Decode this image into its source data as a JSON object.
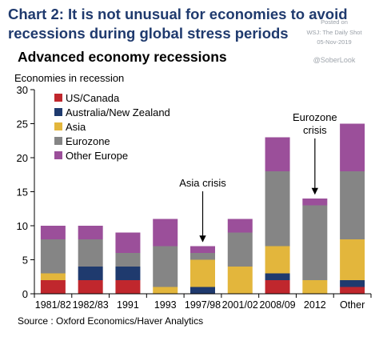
{
  "headline": {
    "line1": "Chart 2: It is not unusual for economies to avoid",
    "line2": "recessions during global stress periods"
  },
  "watermark": {
    "posted": "Posted on",
    "source": "WSJ: The Daily Shot",
    "date": "05-Nov-2019",
    "handle": "@SoberLook"
  },
  "chart_data": {
    "type": "bar",
    "stacked": true,
    "title": "Advanced economy recessions",
    "ylabel": "Economies in recession",
    "ylim": [
      0,
      30
    ],
    "yticks": [
      0,
      5,
      10,
      15,
      20,
      25,
      30
    ],
    "categories": [
      "1981/82",
      "1982/83",
      "1991",
      "1993",
      "1997/98",
      "2001/02",
      "2008/09",
      "2012",
      "Other"
    ],
    "series": [
      {
        "name": "US/Canada",
        "color": "#c0272d",
        "values": [
          2,
          2,
          2,
          0,
          0,
          0,
          2,
          0,
          1
        ]
      },
      {
        "name": "Australia/New Zealand",
        "color": "#1f3a6e",
        "values": [
          0,
          2,
          2,
          0,
          1,
          0,
          1,
          0,
          1
        ]
      },
      {
        "name": "Asia",
        "color": "#e3b63c",
        "values": [
          1,
          0,
          0,
          1,
          4,
          4,
          4,
          2,
          6
        ]
      },
      {
        "name": "Eurozone",
        "color": "#858585",
        "values": [
          5,
          4,
          2,
          6,
          1,
          5,
          11,
          11,
          10
        ]
      },
      {
        "name": "Other Europe",
        "color": "#9b4f9a",
        "values": [
          2,
          2,
          3,
          4,
          1,
          2,
          5,
          1,
          7
        ]
      }
    ],
    "annotations": [
      {
        "text": "Asia crisis",
        "category": "1997/98",
        "arrow_to_value": 7.2
      },
      {
        "lines": [
          "Eurozone",
          "crisis"
        ],
        "category": "2012",
        "arrow_to_value": 14.2
      }
    ],
    "legend_position": "top-left",
    "grid": false,
    "source": "Source : Oxford Economics/Haver Analytics"
  }
}
